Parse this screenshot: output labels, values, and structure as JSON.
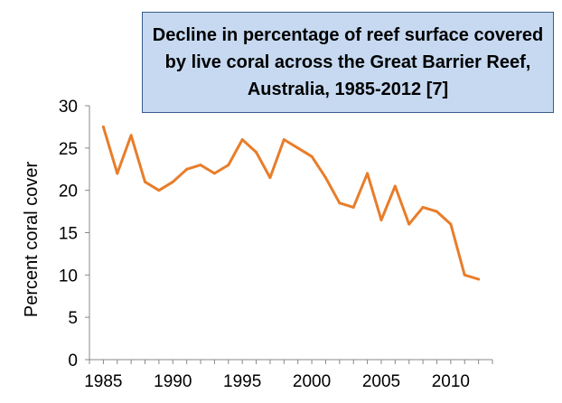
{
  "chart_data": {
    "type": "line",
    "title": "Decline in percentage of reef surface covered by live coral across the Great Barrier Reef, Australia, 1985-2012 [7]",
    "xlabel": "",
    "ylabel": "Percent coral cover",
    "xlim": [
      1984,
      2013
    ],
    "ylim": [
      0,
      30
    ],
    "yticks": [
      0,
      5,
      10,
      15,
      20,
      25,
      30
    ],
    "xticks": [
      1985,
      1990,
      1995,
      2000,
      2005,
      2010
    ],
    "grid": false,
    "legend": "none",
    "series": [
      {
        "color": "#e87d2a",
        "x": [
          1985,
          1986,
          1987,
          1988,
          1989,
          1990,
          1991,
          1992,
          1993,
          1994,
          1995,
          1996,
          1997,
          1998,
          1999,
          2000,
          2001,
          2002,
          2003,
          2004,
          2005,
          2006,
          2007,
          2008,
          2009,
          2010,
          2011,
          2012
        ],
        "y": [
          27.5,
          22,
          26.5,
          21,
          20,
          21,
          22.5,
          23,
          22,
          23,
          26,
          24.5,
          21.5,
          26,
          25,
          24,
          21.5,
          18.5,
          18,
          22,
          16.5,
          20.5,
          16,
          18,
          17.5,
          16,
          10,
          9.5
        ]
      }
    ]
  }
}
